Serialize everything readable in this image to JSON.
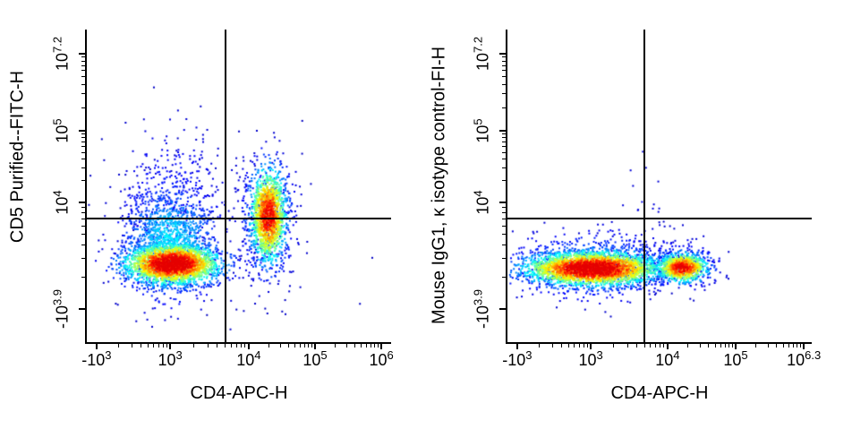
{
  "figure": {
    "background": "#ffffff",
    "axis_color": "#000000",
    "gate_color": "#000000"
  },
  "chart_data": [
    {
      "type": "scatter",
      "subtype": "flow_cytometry_pseudocolor_density",
      "title": "",
      "xlabel": "CD4-APC-H",
      "ylabel": "CD5 Purified--FITC-H",
      "x_ticks": [
        {
          "base": "-10",
          "exp": "3",
          "frac": 0.032
        },
        {
          "base": "10",
          "exp": "3",
          "frac": 0.274
        },
        {
          "base": "10",
          "exp": "4",
          "frac": 0.532
        },
        {
          "base": "10",
          "exp": "5",
          "frac": 0.75
        },
        {
          "base": "10",
          "exp": "6",
          "frac": 0.968
        }
      ],
      "y_ticks": [
        {
          "base": "-10",
          "exp": "3.9",
          "frac": 0.106
        },
        {
          "base": "10",
          "exp": "4",
          "frac": 0.447
        },
        {
          "base": "10",
          "exp": "5",
          "frac": 0.676
        },
        {
          "base": "10",
          "exp": "7.2",
          "frac": 0.923
        }
      ],
      "quadrant_gate": {
        "x_frac": 0.453,
        "y_frac": 0.398
      },
      "populations": [
        {
          "name": "cd4neg-cd5-halo",
          "cx": 0.275,
          "cy": 0.32,
          "sx": 0.075,
          "sy": 0.085,
          "count": 1300,
          "heat": 0.32
        },
        {
          "name": "cd4neg-upper-tail",
          "cx": 0.27,
          "cy": 0.46,
          "sx": 0.085,
          "sy": 0.12,
          "count": 300,
          "heat": 0.1
        },
        {
          "name": "cd4neg-core",
          "cx": 0.28,
          "cy": 0.25,
          "sx": 0.073,
          "sy": 0.031,
          "count": 2600,
          "heat": 1.0
        },
        {
          "name": "cd4pos-halo",
          "cx": 0.595,
          "cy": 0.4,
          "sx": 0.05,
          "sy": 0.1,
          "count": 350,
          "heat": 0.14
        },
        {
          "name": "cd4pos-cluster",
          "cx": 0.597,
          "cy": 0.405,
          "sx": 0.028,
          "sy": 0.072,
          "count": 1500,
          "heat": 0.88
        },
        {
          "name": "sparse-noise",
          "cx": 0.4,
          "cy": 0.33,
          "sx": 0.21,
          "sy": 0.16,
          "count": 140,
          "heat": 0.05
        }
      ]
    },
    {
      "type": "scatter",
      "subtype": "flow_cytometry_pseudocolor_density",
      "title": "",
      "xlabel": "CD4-APC-H",
      "ylabel": "Mouse IgG1, κ isotype control-FI-H",
      "x_ticks": [
        {
          "base": "-10",
          "exp": "3",
          "frac": 0.032
        },
        {
          "base": "10",
          "exp": "3",
          "frac": 0.274
        },
        {
          "base": "10",
          "exp": "4",
          "frac": 0.526
        },
        {
          "base": "10",
          "exp": "5",
          "frac": 0.75
        },
        {
          "base": "10",
          "exp": "6.3",
          "frac": 0.974
        }
      ],
      "y_ticks": [
        {
          "base": "-10",
          "exp": "3.9",
          "frac": 0.106
        },
        {
          "base": "10",
          "exp": "4",
          "frac": 0.447
        },
        {
          "base": "10",
          "exp": "5",
          "frac": 0.676
        },
        {
          "base": "10",
          "exp": "7.2",
          "frac": 0.923
        }
      ],
      "quadrant_gate": {
        "x_frac": 0.447,
        "y_frac": 0.398
      },
      "populations": [
        {
          "name": "isotype-main-halo",
          "cx": 0.285,
          "cy": 0.245,
          "sx": 0.135,
          "sy": 0.05,
          "count": 800,
          "heat": 0.22
        },
        {
          "name": "isotype-main-core",
          "cx": 0.28,
          "cy": 0.235,
          "sx": 0.105,
          "sy": 0.026,
          "count": 3000,
          "heat": 1.0
        },
        {
          "name": "isotype-right-halo",
          "cx": 0.575,
          "cy": 0.245,
          "sx": 0.062,
          "sy": 0.04,
          "count": 220,
          "heat": 0.15
        },
        {
          "name": "isotype-right-core",
          "cx": 0.575,
          "cy": 0.238,
          "sx": 0.04,
          "sy": 0.022,
          "count": 900,
          "heat": 0.88
        },
        {
          "name": "bridge-sparse",
          "cx": 0.43,
          "cy": 0.245,
          "sx": 0.075,
          "sy": 0.035,
          "count": 110,
          "heat": 0.09
        },
        {
          "name": "upper-sparse",
          "cx": 0.43,
          "cy": 0.43,
          "sx": 0.1,
          "sy": 0.09,
          "count": 30,
          "heat": 0.04
        }
      ]
    }
  ]
}
